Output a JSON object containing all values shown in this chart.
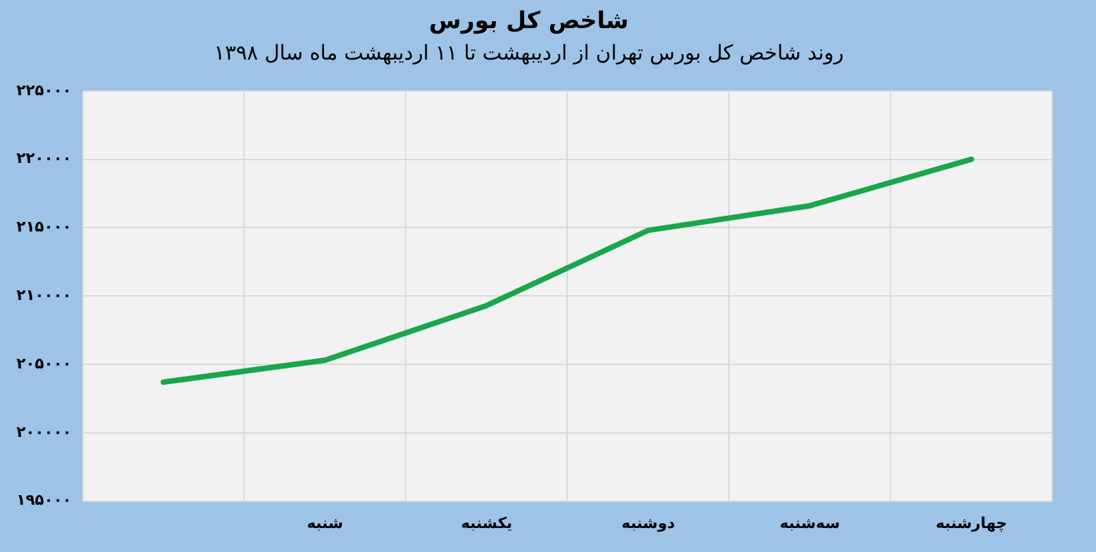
{
  "chart_data": {
    "type": "line",
    "title": "شاخص کل بورس",
    "subtitle": "روند شاخص کل بورس تهران از اردیبهشت تا ۱۱ اردیبهشت ماه سال ۱۳۹۸",
    "categories": [
      null,
      "شنبه",
      "یکشنبه",
      "دوشنبه",
      "سه‌شنبه",
      "چهارشنبه"
    ],
    "series": [
      {
        "color": "#1aa64a",
        "values": [
          203700,
          205300,
          209300,
          214800,
          216600,
          220000
        ]
      }
    ],
    "ylim": [
      195000,
      225000
    ],
    "yticks": [
      {
        "value": 195000,
        "label": "۱۹۵۰۰۰"
      },
      {
        "value": 200000,
        "label": "۲۰۰۰۰۰"
      },
      {
        "value": 205000,
        "label": "۲۰۵۰۰۰"
      },
      {
        "value": 210000,
        "label": "۲۱۰۰۰۰"
      },
      {
        "value": 215000,
        "label": "۲۱۵۰۰۰"
      },
      {
        "value": 220000,
        "label": "۲۲۰۰۰۰"
      },
      {
        "value": 225000,
        "label": "۲۲۵۰۰۰"
      }
    ],
    "grid": true,
    "marker": "none",
    "line_style": "solid",
    "legend": false
  }
}
